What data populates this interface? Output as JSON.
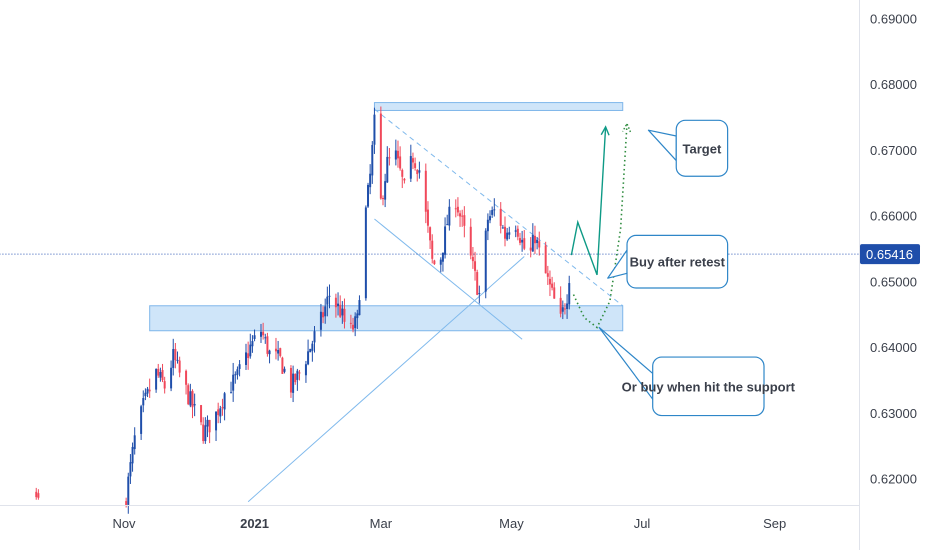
{
  "chart_data": {
    "type": "candlestick",
    "symbol_price": "0.65416",
    "current_price": 0.65416,
    "ylim": [
      0.616,
      0.6928
    ],
    "x_ticks": [
      {
        "label": "Nov",
        "x": "2020-11-01",
        "bold": false
      },
      {
        "label": "2021",
        "x": "2021-01-01",
        "bold": true
      },
      {
        "label": "Mar",
        "x": "2021-03-01",
        "bold": false
      },
      {
        "label": "May",
        "x": "2021-05-01",
        "bold": false
      },
      {
        "label": "Jul",
        "x": "2021-07-01",
        "bold": false
      },
      {
        "label": "Sep",
        "x": "2021-09-01",
        "bold": false
      }
    ],
    "y_ticks": [
      {
        "label": "0.69000",
        "value": 0.69
      },
      {
        "label": "0.68000",
        "value": 0.68
      },
      {
        "label": "0.67000",
        "value": 0.67
      },
      {
        "label": "0.66000",
        "value": 0.66
      },
      {
        "label": "0.65000",
        "value": 0.65
      },
      {
        "label": "0.64000",
        "value": 0.64
      },
      {
        "label": "0.63000",
        "value": 0.63
      },
      {
        "label": "0.62000",
        "value": 0.62
      }
    ],
    "waypoints": [
      [
        "2020-11-02",
        0.6175
      ],
      [
        "2020-11-06",
        0.626
      ],
      [
        "2020-11-10",
        0.631
      ],
      [
        "2020-11-16",
        0.636
      ],
      [
        "2020-11-20",
        0.634
      ],
      [
        "2020-11-24",
        0.6385
      ],
      [
        "2020-11-28",
        0.635
      ],
      [
        "2020-12-03",
        0.631
      ],
      [
        "2020-12-08",
        0.627
      ],
      [
        "2020-12-13",
        0.629
      ],
      [
        "2020-12-18",
        0.633
      ],
      [
        "2020-12-24",
        0.6355
      ],
      [
        "2020-12-30",
        0.64
      ],
      [
        "2021-01-04",
        0.6425
      ],
      [
        "2021-01-08",
        0.639
      ],
      [
        "2021-01-13",
        0.638
      ],
      [
        "2021-01-18",
        0.634
      ],
      [
        "2021-01-22",
        0.636
      ],
      [
        "2021-01-27",
        0.64
      ],
      [
        "2021-02-01",
        0.644
      ],
      [
        "2021-02-05",
        0.648
      ],
      [
        "2021-02-10",
        0.6455
      ],
      [
        "2021-02-14",
        0.642
      ],
      [
        "2021-02-18",
        0.644
      ],
      [
        "2021-02-21",
        0.658
      ],
      [
        "2021-02-24",
        0.666
      ],
      [
        "2021-02-26",
        0.674
      ],
      [
        "2021-03-01",
        0.662
      ],
      [
        "2021-03-04",
        0.668
      ],
      [
        "2021-03-08",
        0.669
      ],
      [
        "2021-03-12",
        0.664
      ],
      [
        "2021-03-16",
        0.669
      ],
      [
        "2021-03-19",
        0.667
      ],
      [
        "2021-03-22",
        0.66
      ],
      [
        "2021-03-25",
        0.653
      ],
      [
        "2021-03-28",
        0.652
      ],
      [
        "2021-04-01",
        0.659
      ],
      [
        "2021-04-05",
        0.6625
      ],
      [
        "2021-04-09",
        0.6575
      ],
      [
        "2021-04-13",
        0.652
      ],
      [
        "2021-04-16",
        0.648
      ],
      [
        "2021-04-20",
        0.6595
      ],
      [
        "2021-04-24",
        0.661
      ],
      [
        "2021-04-28",
        0.657
      ],
      [
        "2021-05-02",
        0.66
      ],
      [
        "2021-05-06",
        0.656
      ],
      [
        "2021-05-09",
        0.653
      ],
      [
        "2021-05-12",
        0.657
      ],
      [
        "2021-05-15",
        0.653
      ],
      [
        "2021-05-18",
        0.65
      ],
      [
        "2021-05-21",
        0.647
      ],
      [
        "2021-05-24",
        0.644
      ],
      [
        "2021-05-27",
        0.648
      ],
      [
        "2021-05-29",
        0.654
      ]
    ],
    "early_bars": [
      {
        "x": "2020-09-21",
        "open": 0.618,
        "close": 0.6172,
        "high": 0.6186,
        "low": 0.6168
      },
      {
        "x": "2020-09-22",
        "open": 0.6178,
        "close": 0.6171,
        "high": 0.6184,
        "low": 0.6168
      }
    ],
    "zones": [
      {
        "name": "resistance-zone",
        "x0": "2021-02-26",
        "x1": "2021-06-22",
        "y0": 0.676,
        "y1": 0.6772
      },
      {
        "name": "support-zone",
        "x0": "2020-11-13",
        "x1": "2021-06-22",
        "y0": 0.6425,
        "y1": 0.6463
      }
    ],
    "lines": [
      {
        "name": "ascending-trendline",
        "x0": "2020-12-29",
        "y0": 0.6165,
        "x1": "2021-05-07",
        "y1": 0.6538,
        "style": "solid"
      },
      {
        "name": "channel-lower-line",
        "x0": "2021-02-26",
        "y0": 0.6595,
        "x1": "2021-05-06",
        "y1": 0.6412,
        "style": "solid"
      },
      {
        "name": "descending-dashed-line",
        "x0": "2021-02-26",
        "y0": 0.6762,
        "x1": "2021-06-22",
        "y1": 0.6463,
        "style": "dashed"
      },
      {
        "name": "price-line",
        "x0": "2020-09-01",
        "y0": 0.65416,
        "x1": "2021-10-26",
        "y1": 0.65416,
        "style": "dotted"
      }
    ],
    "projections": [
      {
        "name": "retest-projection",
        "color": "#0e9a86",
        "style": "solid",
        "points": [
          [
            "2021-05-29",
            0.654
          ],
          [
            "2021-06-01",
            0.659
          ],
          [
            "2021-06-10",
            0.651
          ],
          [
            "2021-06-14",
            0.6735
          ]
        ],
        "arrow": true
      },
      {
        "name": "support-projection",
        "color": "#2e8b3e",
        "style": "dotted",
        "points": [
          [
            "2021-05-30",
            0.648
          ],
          [
            "2021-06-04",
            0.6445
          ],
          [
            "2021-06-10",
            0.643
          ],
          [
            "2021-06-16",
            0.647
          ],
          [
            "2021-06-21",
            0.658
          ],
          [
            "2021-06-24",
            0.674
          ]
        ],
        "arrow": true
      }
    ],
    "callouts": [
      {
        "name": "target-callout",
        "label": "Target",
        "box": {
          "x0": "2021-07-17",
          "x1": "2021-08-10",
          "y0": 0.6745,
          "y1": 0.666
        },
        "pointer": [
          "2021-07-04",
          0.673
        ]
      },
      {
        "name": "buy-after-retest-callout",
        "label": "Buy after retest",
        "box": {
          "x0": "2021-06-24",
          "x1": "2021-08-10",
          "y0": 0.657,
          "y1": 0.649
        },
        "pointer": [
          "2021-06-15",
          0.6505
        ]
      },
      {
        "name": "buy-support-callout",
        "label": "Or buy when hit the support",
        "box": {
          "x0": "2021-07-06",
          "x1": "2021-08-27",
          "y0": 0.6385,
          "y1": 0.6296
        },
        "pointer": [
          "2021-06-11",
          0.643
        ]
      }
    ]
  }
}
